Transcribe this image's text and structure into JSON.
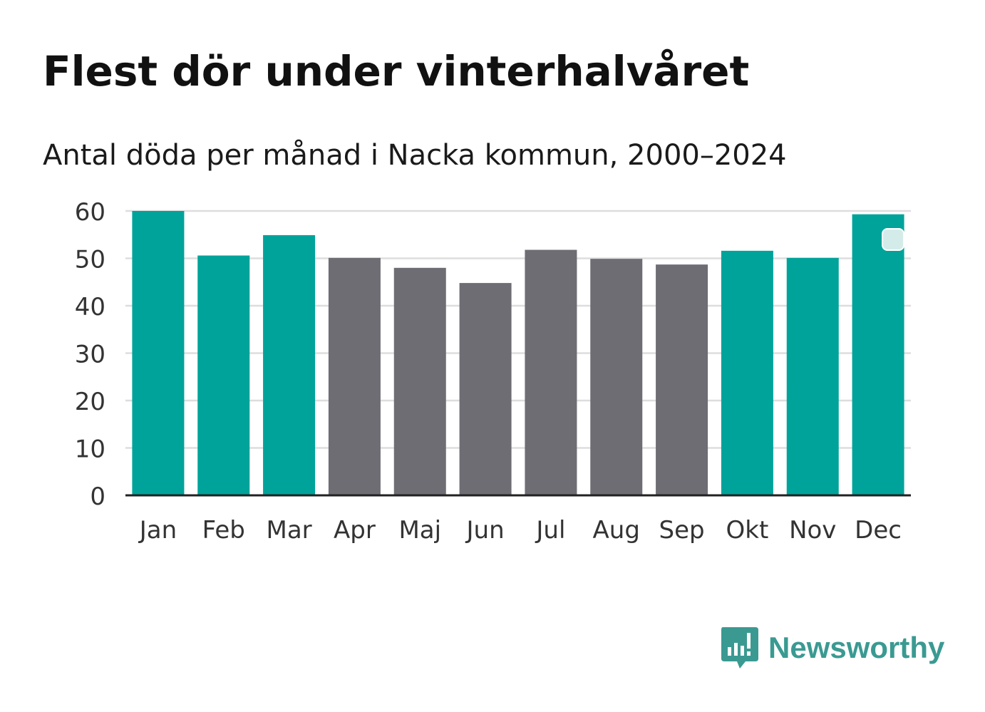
{
  "title": "Flest dör under vinterhalvåret",
  "subtitle": "Antal döda per månad i Nacka kommun, 2000–2024",
  "brand": {
    "name": "Newsworthy",
    "icon": "newsworthy-logo-icon"
  },
  "colors": {
    "winter": "#00a39a",
    "summer": "#6e6d73",
    "grid": "#dddddd",
    "axis": "#222222",
    "brand": "#3a9a92",
    "marker": "#d4ece9"
  },
  "chart_data": {
    "type": "bar",
    "title": "Flest dör under vinterhalvåret",
    "subtitle": "Antal döda per månad i Nacka kommun, 2000–2024",
    "xlabel": "",
    "ylabel": "",
    "ylim": [
      0,
      60
    ],
    "yticks": [
      0,
      10,
      20,
      30,
      40,
      50,
      60
    ],
    "grid": true,
    "categories": [
      "Jan",
      "Feb",
      "Mar",
      "Apr",
      "Maj",
      "Jun",
      "Jul",
      "Aug",
      "Sep",
      "Okt",
      "Nov",
      "Dec"
    ],
    "values": [
      60.0,
      50.6,
      54.9,
      50.1,
      48.0,
      44.8,
      51.8,
      49.9,
      48.7,
      51.6,
      50.1,
      59.3
    ],
    "highlight": [
      "winter",
      "winter",
      "winter",
      "summer",
      "summer",
      "summer",
      "summer",
      "summer",
      "summer",
      "winter",
      "winter",
      "winter"
    ]
  }
}
